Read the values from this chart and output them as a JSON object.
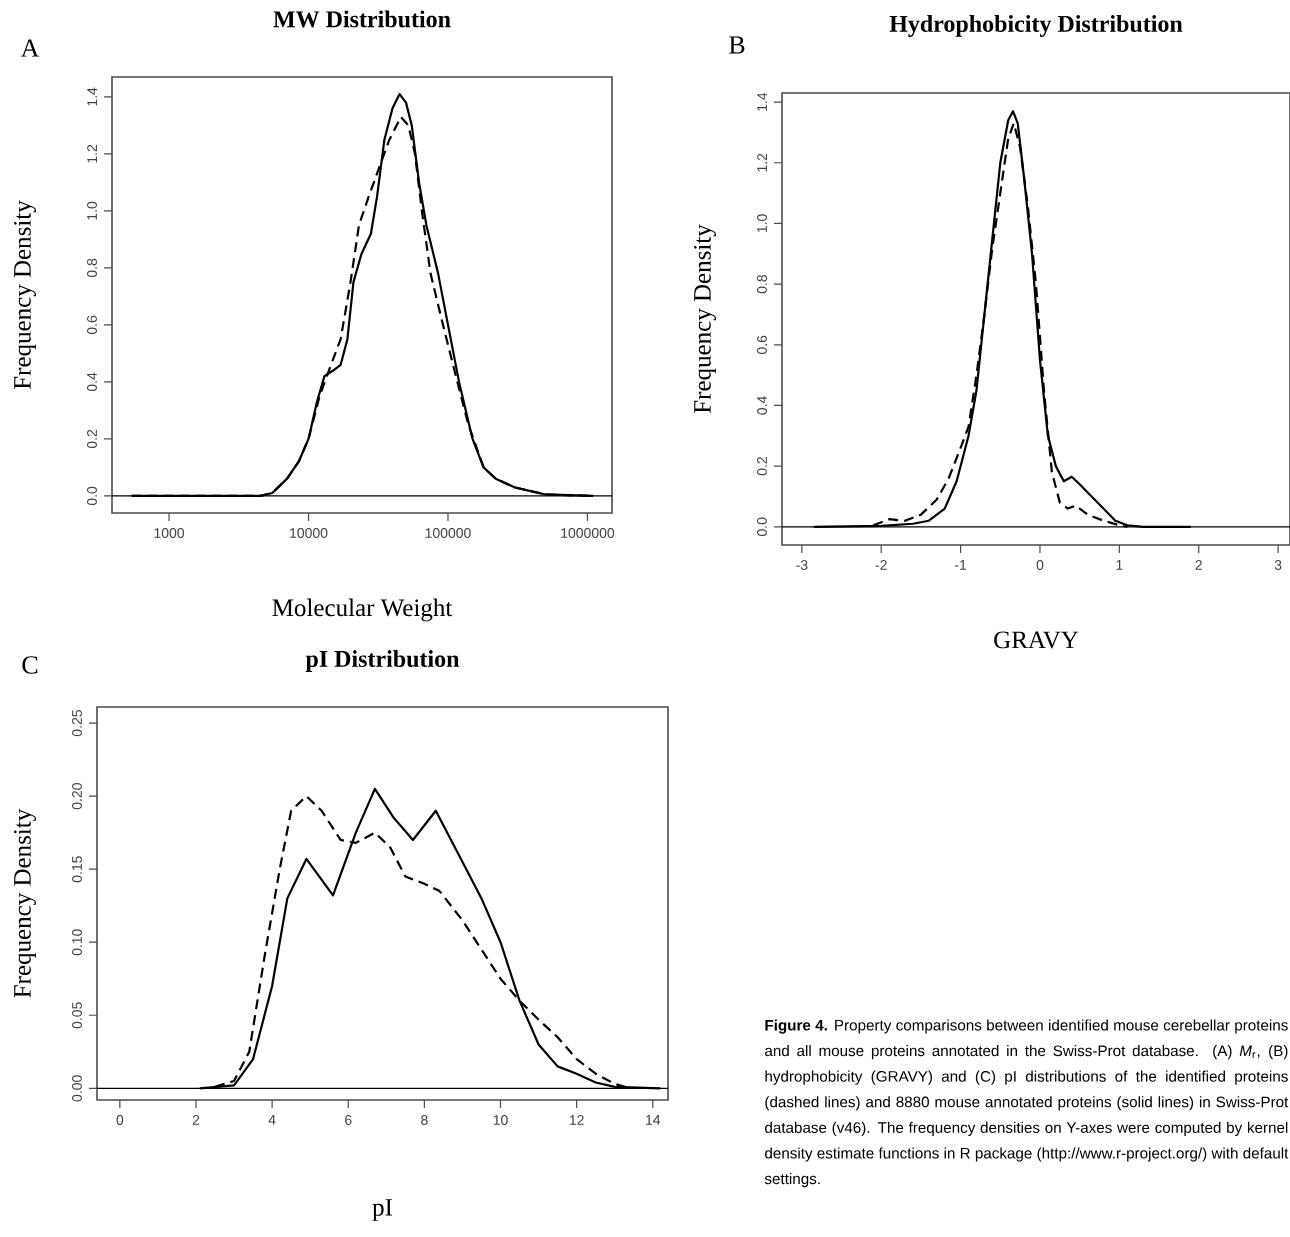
{
  "chart_data": [
    {
      "type": "line",
      "title": "MW Distribution",
      "xlabel": "Molecular Weight",
      "ylabel": "Frequency Density",
      "log": "x",
      "grid": false,
      "xlim": [
        390,
        1500000
      ],
      "ylim": [
        -0.06,
        1.47
      ],
      "xticks": [
        1000,
        10000,
        100000,
        1000000
      ],
      "yticks": [
        {
          "value": 0,
          "label": "0.0"
        },
        {
          "value": 0.2,
          "label": "0.2"
        },
        {
          "value": 0.4,
          "label": "0.4"
        },
        {
          "value": 0.6,
          "label": "0.6"
        },
        {
          "value": 0.8,
          "label": "0.8"
        },
        {
          "value": 1.0,
          "label": "1.0"
        },
        {
          "value": 1.2,
          "label": "1.2"
        },
        {
          "value": 1.4,
          "label": "1.4"
        }
      ],
      "ref_lines": [
        {
          "axis": "y",
          "value": 0,
          "color": "#000000"
        }
      ],
      "annotations": [
        "A"
      ],
      "series": [
        {
          "color": "#000000",
          "line_style": "solid",
          "x": [
            540,
            4500,
            5500,
            7000,
            8500,
            10000,
            11500,
            13000,
            15000,
            17000,
            19000,
            21000,
            24000,
            28000,
            31000,
            35000,
            40000,
            45000,
            50000,
            55000,
            62000,
            70000,
            85000,
            100000,
            120000,
            150000,
            180000,
            220000,
            300000,
            500000,
            1100000
          ],
          "values": [
            0,
            0,
            0.01,
            0.06,
            0.12,
            0.2,
            0.33,
            0.42,
            0.44,
            0.46,
            0.55,
            0.75,
            0.85,
            0.92,
            1.05,
            1.25,
            1.36,
            1.41,
            1.38,
            1.3,
            1.1,
            0.95,
            0.78,
            0.6,
            0.4,
            0.2,
            0.1,
            0.06,
            0.03,
            0.005,
            0
          ]
        },
        {
          "color": "#000000",
          "line_style": "dashed",
          "x": [
            540,
            4500,
            5500,
            7000,
            8500,
            10000,
            12000,
            14000,
            17000,
            20000,
            23000,
            27000,
            32000,
            38000,
            46000,
            52000,
            58000,
            65000,
            75000,
            90000,
            110000,
            140000,
            180000,
            220000,
            300000,
            500000,
            1100000
          ],
          "values": [
            0,
            0,
            0.01,
            0.06,
            0.12,
            0.2,
            0.35,
            0.44,
            0.55,
            0.75,
            0.95,
            1.05,
            1.15,
            1.25,
            1.33,
            1.3,
            1.2,
            1.0,
            0.78,
            0.62,
            0.45,
            0.25,
            0.1,
            0.06,
            0.03,
            0.005,
            0
          ]
        }
      ]
    },
    {
      "type": "line",
      "title": "Hydrophobicity Distribution",
      "xlabel": "GRAVY",
      "ylabel": "Frequency Density",
      "grid": false,
      "xlim": [
        -3.25,
        3.15
      ],
      "ylim": [
        -0.06,
        1.43
      ],
      "xticks": [
        -3,
        -2,
        -1,
        0,
        1,
        2,
        3
      ],
      "yticks": [
        {
          "value": 0,
          "label": "0.0"
        },
        {
          "value": 0.2,
          "label": "0.2"
        },
        {
          "value": 0.4,
          "label": "0.4"
        },
        {
          "value": 0.6,
          "label": "0.6"
        },
        {
          "value": 0.8,
          "label": "0.8"
        },
        {
          "value": 1.0,
          "label": "1.0"
        },
        {
          "value": 1.2,
          "label": "1.2"
        },
        {
          "value": 1.4,
          "label": "1.4"
        }
      ],
      "ref_lines": [
        {
          "axis": "y",
          "value": 0,
          "color": "#000000"
        }
      ],
      "annotations": [
        "B"
      ],
      "series": [
        {
          "color": "#000000",
          "line_style": "solid",
          "x": [
            -2.85,
            -2,
            -1.6,
            -1.4,
            -1.2,
            -1.05,
            -0.9,
            -0.8,
            -0.7,
            -0.6,
            -0.5,
            -0.4,
            -0.34,
            -0.28,
            -0.2,
            -0.1,
            0,
            0.1,
            0.2,
            0.3,
            0.4,
            0.5,
            0.65,
            0.8,
            0.95,
            1.1,
            1.3,
            1.9
          ],
          "values": [
            0,
            0.003,
            0.01,
            0.02,
            0.06,
            0.15,
            0.3,
            0.45,
            0.7,
            0.95,
            1.2,
            1.34,
            1.37,
            1.33,
            1.15,
            0.9,
            0.55,
            0.3,
            0.2,
            0.15,
            0.165,
            0.14,
            0.1,
            0.06,
            0.02,
            0.005,
            0,
            0
          ]
        },
        {
          "color": "#000000",
          "line_style": "dashed",
          "x": [
            -2.1,
            -1.9,
            -1.7,
            -1.5,
            -1.3,
            -1.15,
            -1.0,
            -0.9,
            -0.8,
            -0.7,
            -0.6,
            -0.5,
            -0.4,
            -0.33,
            -0.25,
            -0.15,
            -0.05,
            0.05,
            0.15,
            0.25,
            0.35,
            0.45,
            0.6,
            0.8,
            1.0,
            1.1
          ],
          "values": [
            0.005,
            0.025,
            0.02,
            0.04,
            0.09,
            0.16,
            0.26,
            0.33,
            0.5,
            0.7,
            0.92,
            1.1,
            1.28,
            1.33,
            1.25,
            1.05,
            0.8,
            0.45,
            0.18,
            0.08,
            0.06,
            0.07,
            0.04,
            0.02,
            0.005,
            0
          ]
        }
      ]
    },
    {
      "type": "line",
      "title": "pI Distribution",
      "xlabel": "pI",
      "ylabel": "Frequency Density",
      "grid": false,
      "xlim": [
        -0.6,
        14.4
      ],
      "ylim": [
        -0.008,
        0.261
      ],
      "xticks": [
        0,
        2,
        4,
        6,
        8,
        10,
        12,
        14
      ],
      "yticks": [
        {
          "value": 0,
          "label": "0.00"
        },
        {
          "value": 0.05,
          "label": "0.05"
        },
        {
          "value": 0.1,
          "label": "0.10"
        },
        {
          "value": 0.15,
          "label": "0.15"
        },
        {
          "value": 0.2,
          "label": "0.20"
        },
        {
          "value": 0.25,
          "label": "0.25"
        }
      ],
      "ref_lines": [
        {
          "axis": "y",
          "value": 0,
          "color": "#000000"
        }
      ],
      "annotations": [
        "C",
        "**Figure 4.** Property comparisons between identified mouse cerebellar proteins and all mouse proteins annotated in the Swiss-Prot database. (A) *M*$_{r}$, (B) hydrophobicity (GRAVY) and (C) pI distributions of the identified proteins (dashed lines) and 8880 mouse annotated proteins (solid lines) in Swiss-Prot database (v46). The frequency densities on Y-axes were computed by kernel density estimate functions in R package (http://www.r-project.org/) with default settings."
      ],
      "series": [
        {
          "color": "#000000",
          "line_style": "solid",
          "x": [
            2.1,
            3,
            3.5,
            4,
            4.4,
            4.9,
            5.6,
            6.2,
            6.7,
            7.2,
            7.7,
            8.3,
            8.8,
            9.5,
            10,
            10.5,
            11,
            11.5,
            12,
            12.5,
            13,
            14.2
          ],
          "values": [
            0,
            0.002,
            0.02,
            0.07,
            0.13,
            0.157,
            0.132,
            0.175,
            0.205,
            0.185,
            0.17,
            0.19,
            0.165,
            0.13,
            0.1,
            0.06,
            0.03,
            0.015,
            0.01,
            0.004,
            0.001,
            0
          ]
        },
        {
          "color": "#000000",
          "line_style": "dashed",
          "x": [
            2.5,
            3,
            3.4,
            3.8,
            4.2,
            4.5,
            4.9,
            5.3,
            5.8,
            6.2,
            6.7,
            7.1,
            7.5,
            8,
            8.4,
            9,
            9.5,
            10,
            10.5,
            11,
            11.5,
            12,
            12.5,
            13,
            13.4
          ],
          "values": [
            0.001,
            0.005,
            0.025,
            0.09,
            0.15,
            0.19,
            0.2,
            0.19,
            0.17,
            0.168,
            0.175,
            0.165,
            0.145,
            0.14,
            0.135,
            0.115,
            0.095,
            0.075,
            0.06,
            0.047,
            0.035,
            0.02,
            0.01,
            0.003,
            0
          ]
        }
      ]
    }
  ]
}
